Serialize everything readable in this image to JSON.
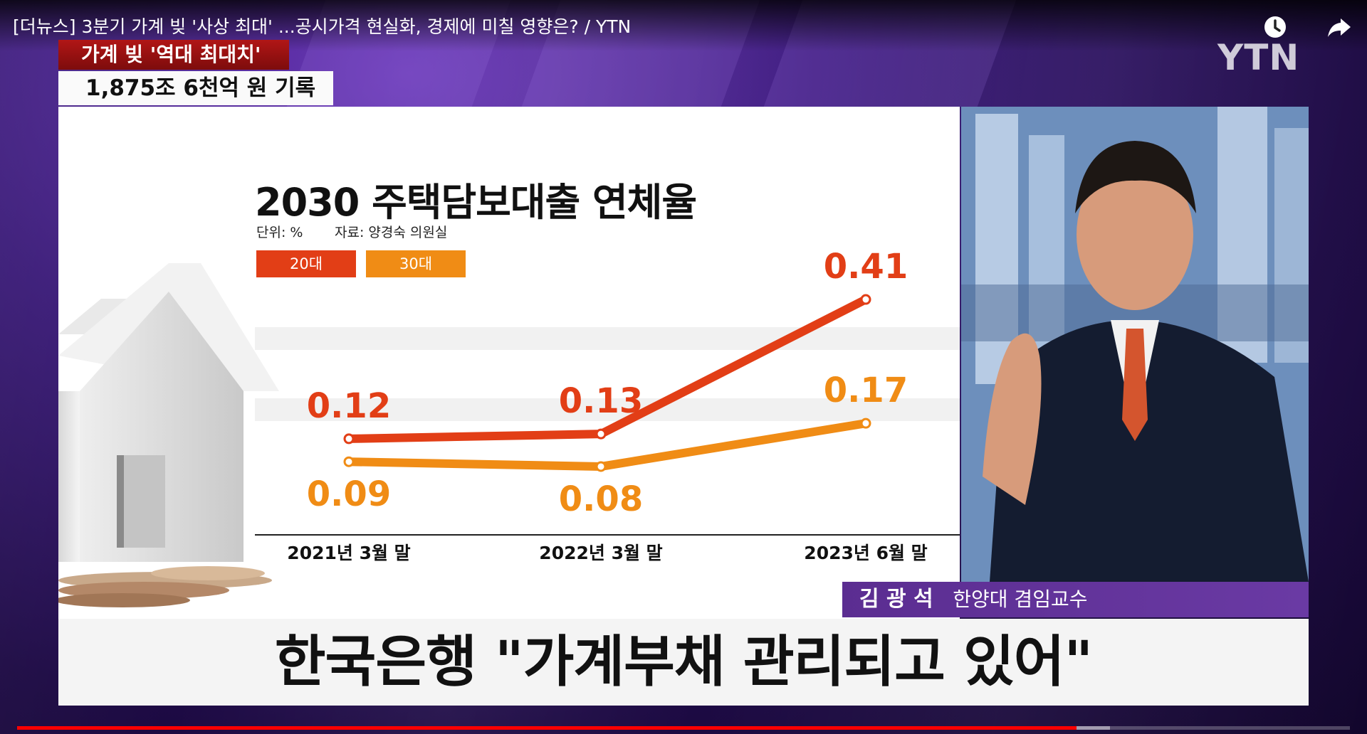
{
  "player": {
    "video_title": "[더뉴스] 3분기 가계 빚 '사상 최대' ...공시가격 현실화, 경제에 미칠 영향은? / YTN",
    "progress_played": 0.795,
    "progress_buffered": 0.82
  },
  "broadcast": {
    "logo_text": "YTN",
    "tag_red": "가계 빚 '역대 최대치'",
    "tag_white": "1,875조 6천억 원 기록",
    "headline": "한국은행 \"가계부채 관리되고 있어\"",
    "presenter_name": "김 광 석",
    "presenter_title": "한양대 겸임교수"
  },
  "chart_data": {
    "type": "line",
    "title": "2030 주택담보대출 연체율",
    "unit_text": "단위: %",
    "source_text": "자료: 양경숙 의원실",
    "categories": [
      "2021년 3월 말",
      "2022년 3월 말",
      "2023년 6월 말"
    ],
    "series": [
      {
        "name": "20대",
        "values": [
          0.12,
          0.13,
          0.41
        ],
        "color": "#e23e16"
      },
      {
        "name": "30대",
        "values": [
          0.09,
          0.08,
          0.17
        ],
        "color": "#f08c15"
      }
    ]
  },
  "colors": {
    "brand_red": "#b11616",
    "name_bar": "#5b2d91",
    "progress": "#ff0000"
  }
}
